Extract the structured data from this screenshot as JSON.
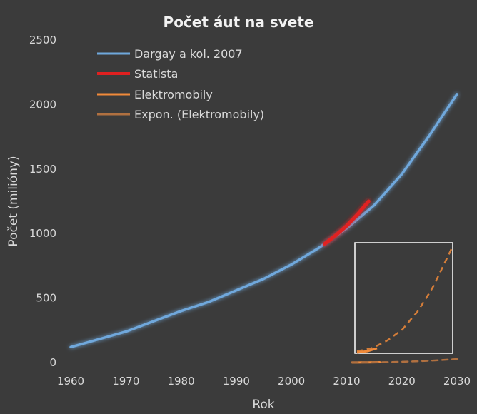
{
  "chart_data": {
    "type": "line",
    "title": "Počet áut na svete",
    "xlabel": "Rok",
    "ylabel": "Počet (milióny)",
    "xlim": [
      1960,
      2030
    ],
    "ylim": [
      0,
      2500
    ],
    "x_ticks": [
      "1960",
      "1970",
      "1980",
      "1990",
      "2000",
      "2010",
      "2020",
      "2030"
    ],
    "y_ticks": [
      "0",
      "500",
      "1000",
      "1500",
      "2000",
      "2500"
    ],
    "grid": false,
    "legend_position": "top-left",
    "series": [
      {
        "name": "Dargay a kol. 2007",
        "color": "#6fa8dc",
        "style": "solid",
        "x": [
          1960,
          1965,
          1970,
          1975,
          1980,
          1985,
          1990,
          1995,
          2000,
          2005,
          2010,
          2015,
          2020,
          2025,
          2030
        ],
        "y": [
          120,
          180,
          240,
          320,
          400,
          470,
          560,
          650,
          760,
          890,
          1040,
          1220,
          1460,
          1760,
          2080
        ]
      },
      {
        "name": "Statista",
        "color": "#e02020",
        "style": "solid",
        "x": [
          2006,
          2008,
          2010,
          2012,
          2014
        ],
        "y": [
          920,
          985,
          1060,
          1150,
          1250
        ]
      },
      {
        "name": "Elektromobily",
        "color": "#f08a3a",
        "style": "solid",
        "x": [
          2011,
          2012,
          2013,
          2014,
          2015,
          2016
        ],
        "y": [
          0.5,
          0.6,
          0.9,
          1.3,
          2.0,
          3.0
        ]
      },
      {
        "name": "Expon. (Elektromobily)",
        "color": "#b07040",
        "style": "dashed",
        "x": [
          2011,
          2014,
          2017,
          2020,
          2023,
          2026,
          2030
        ],
        "y": [
          0.5,
          1.3,
          3.2,
          6.0,
          10.5,
          16.5,
          27
        ]
      }
    ]
  },
  "inset": {
    "border_color": "#ffffff",
    "curve_color": "#f08a3a",
    "curve_style": "dashed"
  }
}
